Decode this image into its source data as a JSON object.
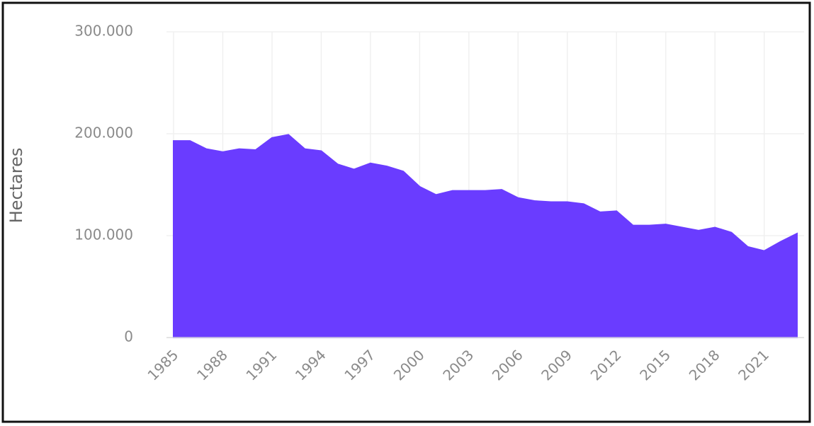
{
  "chart_data": {
    "type": "area",
    "y_label": "Hectares",
    "x": [
      1985,
      1986,
      1987,
      1988,
      1989,
      1990,
      1991,
      1992,
      1993,
      1994,
      1995,
      1996,
      1997,
      1998,
      1999,
      2000,
      2001,
      2002,
      2003,
      2004,
      2005,
      2006,
      2007,
      2008,
      2009,
      2010,
      2011,
      2012,
      2013,
      2014,
      2015,
      2016,
      2017,
      2018,
      2019,
      2020,
      2021,
      2022,
      2023
    ],
    "values": [
      193000,
      193000,
      185000,
      182000,
      185000,
      184000,
      196000,
      199000,
      185000,
      183000,
      170000,
      165000,
      171000,
      168000,
      163000,
      148000,
      140000,
      144000,
      144000,
      144000,
      145000,
      137000,
      134000,
      133000,
      133000,
      131000,
      123000,
      124000,
      110000,
      110000,
      111000,
      108000,
      105000,
      108000,
      103000,
      89000,
      85000,
      94000,
      102000
    ],
    "color": "#6a3cff",
    "xlim": [
      1985,
      2023
    ],
    "xticks": [
      1985,
      1988,
      1991,
      1994,
      1997,
      2000,
      2003,
      2006,
      2009,
      2012,
      2015,
      2018,
      2021
    ],
    "ylim": [
      0,
      300000
    ],
    "yticks": [
      0,
      {
        "value": 100000,
        "label": "100.000"
      },
      {
        "value": 200000,
        "label": "200.000"
      },
      {
        "value": 300000,
        "label": "300.000"
      }
    ],
    "grid": true
  }
}
